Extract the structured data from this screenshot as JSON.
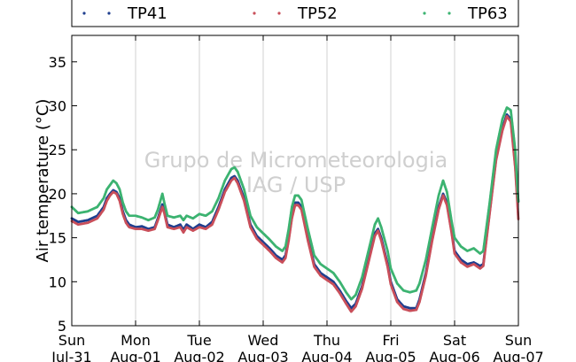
{
  "chart_data": {
    "type": "scatter",
    "title": "",
    "ylabel": "Air temperature (°C)",
    "xlabel": "",
    "ylim": [
      5,
      38
    ],
    "yticks": [
      5,
      10,
      15,
      20,
      25,
      30,
      35
    ],
    "xlim": [
      0,
      7
    ],
    "grid": "vertical",
    "legend_position": "top",
    "xticks": [
      {
        "x": 0,
        "day": "Sun",
        "date": "Jul-31"
      },
      {
        "x": 1,
        "day": "Mon",
        "date": "Aug-01"
      },
      {
        "x": 2,
        "day": "Tue",
        "date": "Aug-02"
      },
      {
        "x": 3,
        "day": "Wed",
        "date": "Aug-03"
      },
      {
        "x": 4,
        "day": "Thu",
        "date": "Aug-04"
      },
      {
        "x": 5,
        "day": "Fri",
        "date": "Aug-05"
      },
      {
        "x": 6,
        "day": "Sat",
        "date": "Aug-06"
      },
      {
        "x": 7,
        "day": "Sun",
        "date": "Aug-07"
      }
    ],
    "watermark": [
      "Grupo de Micrometeorologia",
      "IAG / USP"
    ],
    "series": [
      {
        "name": "TP41",
        "color": "#1f3f8f",
        "points": [
          [
            0,
            17.2
          ],
          [
            0.1,
            16.8
          ],
          [
            0.25,
            17.0
          ],
          [
            0.4,
            17.5
          ],
          [
            0.5,
            18.5
          ],
          [
            0.55,
            19.5
          ],
          [
            0.6,
            20.0
          ],
          [
            0.65,
            20.4
          ],
          [
            0.7,
            20.2
          ],
          [
            0.75,
            19.5
          ],
          [
            0.8,
            18.0
          ],
          [
            0.85,
            17.0
          ],
          [
            0.9,
            16.5
          ],
          [
            1.0,
            16.2
          ],
          [
            1.1,
            16.3
          ],
          [
            1.2,
            16.0
          ],
          [
            1.3,
            16.2
          ],
          [
            1.35,
            17.2
          ],
          [
            1.42,
            18.8
          ],
          [
            1.45,
            18.0
          ],
          [
            1.5,
            16.5
          ],
          [
            1.6,
            16.2
          ],
          [
            1.7,
            16.5
          ],
          [
            1.75,
            15.9
          ],
          [
            1.8,
            16.5
          ],
          [
            1.9,
            16.0
          ],
          [
            2.0,
            16.5
          ],
          [
            2.1,
            16.2
          ],
          [
            2.2,
            16.8
          ],
          [
            2.3,
            18.5
          ],
          [
            2.4,
            20.5
          ],
          [
            2.5,
            21.8
          ],
          [
            2.55,
            22.0
          ],
          [
            2.6,
            21.5
          ],
          [
            2.7,
            19.5
          ],
          [
            2.8,
            16.5
          ],
          [
            2.9,
            15.2
          ],
          [
            3.0,
            14.5
          ],
          [
            3.1,
            13.8
          ],
          [
            3.2,
            13.0
          ],
          [
            3.3,
            12.5
          ],
          [
            3.35,
            13.0
          ],
          [
            3.4,
            15.0
          ],
          [
            3.45,
            17.5
          ],
          [
            3.5,
            19.0
          ],
          [
            3.55,
            19.0
          ],
          [
            3.6,
            18.5
          ],
          [
            3.7,
            15.0
          ],
          [
            3.8,
            12.0
          ],
          [
            3.9,
            11.0
          ],
          [
            4.0,
            10.5
          ],
          [
            4.1,
            10.0
          ],
          [
            4.2,
            9.0
          ],
          [
            4.3,
            7.8
          ],
          [
            4.38,
            7.0
          ],
          [
            4.45,
            7.5
          ],
          [
            4.55,
            9.5
          ],
          [
            4.65,
            12.5
          ],
          [
            4.75,
            15.5
          ],
          [
            4.8,
            16.0
          ],
          [
            4.85,
            15.0
          ],
          [
            4.95,
            12.0
          ],
          [
            5.0,
            10.0
          ],
          [
            5.1,
            8.0
          ],
          [
            5.2,
            7.2
          ],
          [
            5.3,
            7.0
          ],
          [
            5.4,
            7.0
          ],
          [
            5.45,
            8.0
          ],
          [
            5.55,
            11.0
          ],
          [
            5.65,
            15.0
          ],
          [
            5.75,
            18.5
          ],
          [
            5.82,
            20.0
          ],
          [
            5.88,
            19.0
          ],
          [
            5.95,
            16.0
          ],
          [
            6.0,
            13.5
          ],
          [
            6.1,
            12.5
          ],
          [
            6.2,
            12.0
          ],
          [
            6.3,
            12.2
          ],
          [
            6.4,
            11.8
          ],
          [
            6.45,
            12.0
          ],
          [
            6.55,
            18.0
          ],
          [
            6.65,
            24.0
          ],
          [
            6.75,
            27.5
          ],
          [
            6.82,
            29.0
          ],
          [
            6.88,
            28.5
          ],
          [
            6.95,
            23.5
          ],
          [
            7.0,
            19.0
          ]
        ]
      },
      {
        "name": "TP52",
        "color": "#c94f5a",
        "points": [
          [
            0,
            16.9
          ],
          [
            0.1,
            16.5
          ],
          [
            0.25,
            16.7
          ],
          [
            0.4,
            17.2
          ],
          [
            0.5,
            18.2
          ],
          [
            0.55,
            19.2
          ],
          [
            0.6,
            19.8
          ],
          [
            0.65,
            20.2
          ],
          [
            0.7,
            20.0
          ],
          [
            0.75,
            19.2
          ],
          [
            0.8,
            17.7
          ],
          [
            0.85,
            16.7
          ],
          [
            0.9,
            16.2
          ],
          [
            1.0,
            16.0
          ],
          [
            1.1,
            16.0
          ],
          [
            1.2,
            15.8
          ],
          [
            1.3,
            16.0
          ],
          [
            1.35,
            17.0
          ],
          [
            1.42,
            18.5
          ],
          [
            1.45,
            17.8
          ],
          [
            1.5,
            16.2
          ],
          [
            1.6,
            16.0
          ],
          [
            1.7,
            16.2
          ],
          [
            1.75,
            15.6
          ],
          [
            1.8,
            16.2
          ],
          [
            1.9,
            15.8
          ],
          [
            2.0,
            16.2
          ],
          [
            2.1,
            16.0
          ],
          [
            2.2,
            16.5
          ],
          [
            2.3,
            18.2
          ],
          [
            2.4,
            20.2
          ],
          [
            2.5,
            21.5
          ],
          [
            2.55,
            21.8
          ],
          [
            2.6,
            21.2
          ],
          [
            2.7,
            19.2
          ],
          [
            2.8,
            16.2
          ],
          [
            2.9,
            14.9
          ],
          [
            3.0,
            14.2
          ],
          [
            3.1,
            13.5
          ],
          [
            3.2,
            12.7
          ],
          [
            3.3,
            12.2
          ],
          [
            3.35,
            12.7
          ],
          [
            3.4,
            14.7
          ],
          [
            3.45,
            17.2
          ],
          [
            3.5,
            18.7
          ],
          [
            3.55,
            18.7
          ],
          [
            3.6,
            18.2
          ],
          [
            3.7,
            14.7
          ],
          [
            3.8,
            11.7
          ],
          [
            3.9,
            10.7
          ],
          [
            4.0,
            10.2
          ],
          [
            4.1,
            9.7
          ],
          [
            4.2,
            8.7
          ],
          [
            4.3,
            7.5
          ],
          [
            4.38,
            6.6
          ],
          [
            4.45,
            7.2
          ],
          [
            4.55,
            9.2
          ],
          [
            4.65,
            12.2
          ],
          [
            4.75,
            15.2
          ],
          [
            4.8,
            15.8
          ],
          [
            4.85,
            14.7
          ],
          [
            4.95,
            11.7
          ],
          [
            5.0,
            9.7
          ],
          [
            5.1,
            7.7
          ],
          [
            5.2,
            6.9
          ],
          [
            5.3,
            6.7
          ],
          [
            5.4,
            6.8
          ],
          [
            5.45,
            7.7
          ],
          [
            5.55,
            10.7
          ],
          [
            5.65,
            14.7
          ],
          [
            5.75,
            18.2
          ],
          [
            5.82,
            19.8
          ],
          [
            5.88,
            18.7
          ],
          [
            5.95,
            15.7
          ],
          [
            6.0,
            13.2
          ],
          [
            6.1,
            12.2
          ],
          [
            6.2,
            11.7
          ],
          [
            6.3,
            12.0
          ],
          [
            6.4,
            11.5
          ],
          [
            6.45,
            11.8
          ],
          [
            6.55,
            17.8
          ],
          [
            6.65,
            23.8
          ],
          [
            6.75,
            27.2
          ],
          [
            6.82,
            28.8
          ],
          [
            6.88,
            28.2
          ],
          [
            6.95,
            23.0
          ],
          [
            7.0,
            17.0
          ]
        ]
      },
      {
        "name": "TP63",
        "color": "#3cb371",
        "points": [
          [
            0,
            18.5
          ],
          [
            0.1,
            17.8
          ],
          [
            0.25,
            18.0
          ],
          [
            0.4,
            18.5
          ],
          [
            0.5,
            19.5
          ],
          [
            0.55,
            20.5
          ],
          [
            0.6,
            21.0
          ],
          [
            0.65,
            21.5
          ],
          [
            0.7,
            21.2
          ],
          [
            0.75,
            20.5
          ],
          [
            0.8,
            19.0
          ],
          [
            0.85,
            18.0
          ],
          [
            0.9,
            17.5
          ],
          [
            1.0,
            17.5
          ],
          [
            1.1,
            17.3
          ],
          [
            1.2,
            17.0
          ],
          [
            1.3,
            17.3
          ],
          [
            1.35,
            18.2
          ],
          [
            1.42,
            20.0
          ],
          [
            1.45,
            19.0
          ],
          [
            1.5,
            17.5
          ],
          [
            1.6,
            17.3
          ],
          [
            1.7,
            17.5
          ],
          [
            1.75,
            17.0
          ],
          [
            1.8,
            17.5
          ],
          [
            1.9,
            17.2
          ],
          [
            2.0,
            17.7
          ],
          [
            2.1,
            17.5
          ],
          [
            2.2,
            18.0
          ],
          [
            2.3,
            19.5
          ],
          [
            2.4,
            21.5
          ],
          [
            2.5,
            22.8
          ],
          [
            2.55,
            23.0
          ],
          [
            2.6,
            22.5
          ],
          [
            2.7,
            20.5
          ],
          [
            2.8,
            17.5
          ],
          [
            2.9,
            16.2
          ],
          [
            3.0,
            15.5
          ],
          [
            3.1,
            14.8
          ],
          [
            3.2,
            14.0
          ],
          [
            3.3,
            13.5
          ],
          [
            3.35,
            14.0
          ],
          [
            3.4,
            16.0
          ],
          [
            3.45,
            18.5
          ],
          [
            3.5,
            19.8
          ],
          [
            3.55,
            19.8
          ],
          [
            3.6,
            19.3
          ],
          [
            3.7,
            16.0
          ],
          [
            3.8,
            13.0
          ],
          [
            3.9,
            12.0
          ],
          [
            4.0,
            11.5
          ],
          [
            4.1,
            11.0
          ],
          [
            4.2,
            10.0
          ],
          [
            4.3,
            8.8
          ],
          [
            4.38,
            8.0
          ],
          [
            4.45,
            8.5
          ],
          [
            4.55,
            10.5
          ],
          [
            4.65,
            13.5
          ],
          [
            4.75,
            16.5
          ],
          [
            4.8,
            17.2
          ],
          [
            4.85,
            16.2
          ],
          [
            4.95,
            13.5
          ],
          [
            5.0,
            11.5
          ],
          [
            5.1,
            9.8
          ],
          [
            5.2,
            9.0
          ],
          [
            5.3,
            8.8
          ],
          [
            5.4,
            9.0
          ],
          [
            5.45,
            9.8
          ],
          [
            5.55,
            12.5
          ],
          [
            5.65,
            16.2
          ],
          [
            5.75,
            19.8
          ],
          [
            5.82,
            21.5
          ],
          [
            5.88,
            20.2
          ],
          [
            5.95,
            17.0
          ],
          [
            6.0,
            15.0
          ],
          [
            6.1,
            14.0
          ],
          [
            6.2,
            13.5
          ],
          [
            6.3,
            13.8
          ],
          [
            6.4,
            13.2
          ],
          [
            6.45,
            13.5
          ],
          [
            6.55,
            19.0
          ],
          [
            6.65,
            25.0
          ],
          [
            6.75,
            28.5
          ],
          [
            6.82,
            29.8
          ],
          [
            6.88,
            29.5
          ],
          [
            6.95,
            25.0
          ],
          [
            7.0,
            19.0
          ]
        ]
      }
    ]
  }
}
